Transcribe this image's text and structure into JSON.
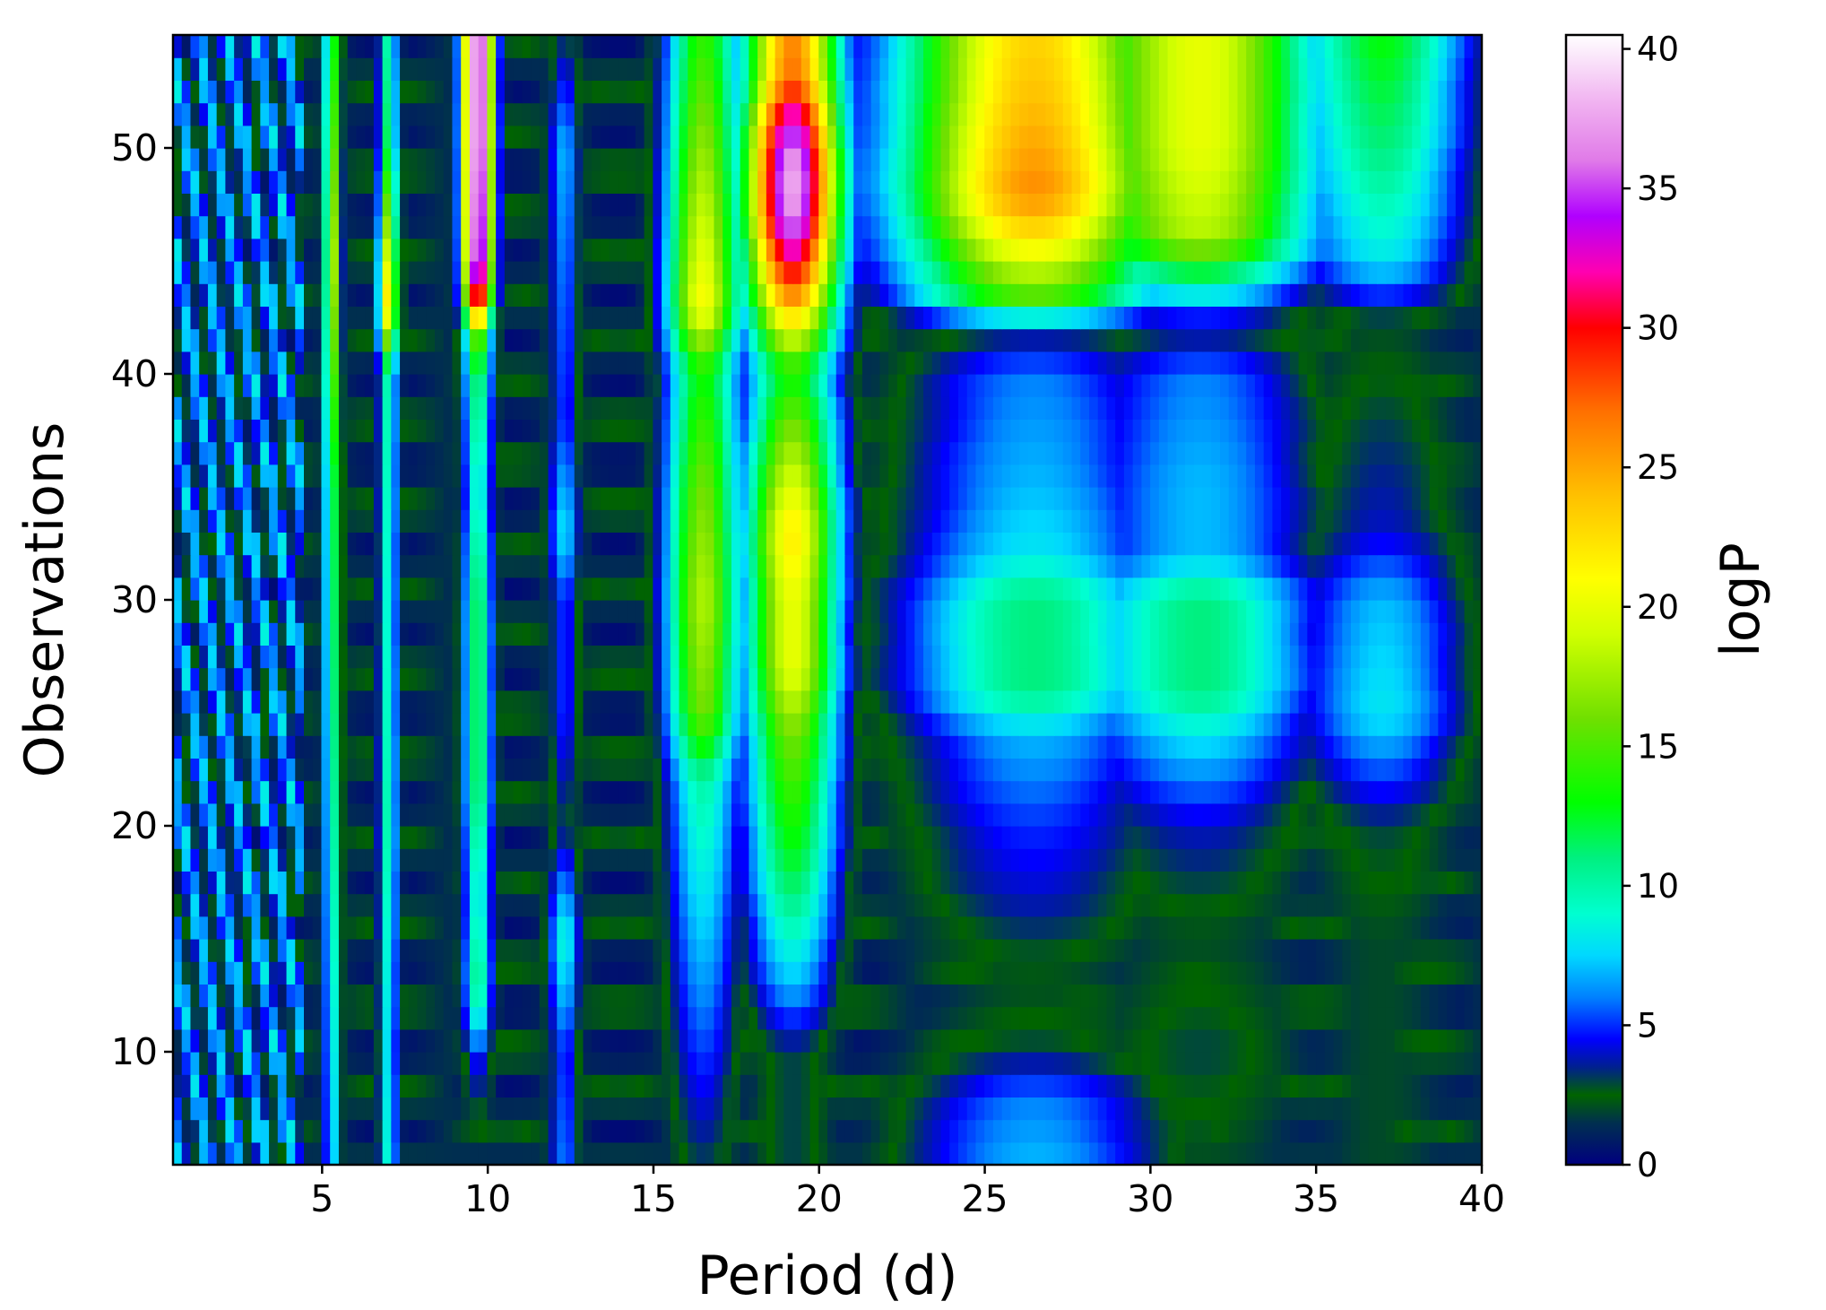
{
  "chart_data": {
    "type": "heatmap",
    "title": "",
    "xlabel": "Period (d)",
    "ylabel": "Observations",
    "colorbar_label": "logP",
    "xlim": [
      0.5,
      40
    ],
    "ylim": [
      5,
      55
    ],
    "clim": [
      0,
      40.5
    ],
    "colormap": "gist_ncar",
    "grid": false,
    "x_ticks": [
      5,
      10,
      15,
      20,
      25,
      30,
      35,
      40
    ],
    "x_tick_labels": [
      "5",
      "10",
      "15",
      "20",
      "25",
      "30",
      "35",
      "40"
    ],
    "y_ticks": [
      10,
      20,
      30,
      40,
      50
    ],
    "y_tick_labels": [
      "10",
      "20",
      "30",
      "40",
      "50"
    ],
    "colorbar_ticks": [
      0,
      5,
      10,
      15,
      20,
      25,
      30,
      35,
      40
    ],
    "colorbar_tick_labels": [
      "0",
      "5",
      "10",
      "15",
      "20",
      "25",
      "30",
      "35",
      "40"
    ],
    "colorbar_stops": [
      {
        "v": 0,
        "color": "#000080"
      },
      {
        "v": 1.5,
        "color": "#002f4f"
      },
      {
        "v": 2.5,
        "color": "#006400"
      },
      {
        "v": 3.5,
        "color": "#00208f"
      },
      {
        "v": 4.5,
        "color": "#0000ff"
      },
      {
        "v": 6,
        "color": "#0080ff"
      },
      {
        "v": 7.5,
        "color": "#00d8ff"
      },
      {
        "v": 9,
        "color": "#00ffd0"
      },
      {
        "v": 11,
        "color": "#00f080"
      },
      {
        "v": 13,
        "color": "#00ff00"
      },
      {
        "v": 16,
        "color": "#70e000"
      },
      {
        "v": 19,
        "color": "#d0ff00"
      },
      {
        "v": 21,
        "color": "#ffff00"
      },
      {
        "v": 24,
        "color": "#ffc000"
      },
      {
        "v": 27,
        "color": "#ff7000"
      },
      {
        "v": 30,
        "color": "#ff0000"
      },
      {
        "v": 32,
        "color": "#ff00b0"
      },
      {
        "v": 34,
        "color": "#b000ff"
      },
      {
        "v": 36,
        "color": "#e07ae8"
      },
      {
        "v": 38,
        "color": "#f0b0f0"
      },
      {
        "v": 40.5,
        "color": "#ffffff"
      }
    ],
    "period_features": [
      {
        "period": 9.7,
        "width": 0.45,
        "values_by_obs": [
          [
            5,
            1
          ],
          [
            10,
            5
          ],
          [
            11,
            8
          ],
          [
            13,
            11
          ],
          [
            17,
            9
          ],
          [
            22,
            12
          ],
          [
            25,
            12
          ],
          [
            30,
            12
          ],
          [
            35,
            9
          ],
          [
            40,
            12
          ],
          [
            42,
            17
          ],
          [
            43,
            30
          ],
          [
            45,
            38
          ],
          [
            50,
            40
          ],
          [
            55,
            40
          ]
        ]
      },
      {
        "period": 19.2,
        "width": 1.4,
        "values_by_obs": [
          [
            5,
            3
          ],
          [
            10,
            3
          ],
          [
            13,
            7
          ],
          [
            18,
            12
          ],
          [
            24,
            16
          ],
          [
            27,
            20
          ],
          [
            30,
            20
          ],
          [
            33,
            22
          ],
          [
            37,
            17
          ],
          [
            40,
            13
          ],
          [
            42,
            20
          ],
          [
            44,
            28
          ],
          [
            47,
            37
          ],
          [
            49,
            38
          ],
          [
            51,
            34
          ],
          [
            53,
            27
          ],
          [
            55,
            26
          ]
        ]
      },
      {
        "period": 16.5,
        "width": 1.1,
        "values_by_obs": [
          [
            5,
            3
          ],
          [
            12,
            6
          ],
          [
            17,
            8
          ],
          [
            22,
            10
          ],
          [
            25,
            16
          ],
          [
            30,
            18
          ],
          [
            35,
            16
          ],
          [
            40,
            13
          ],
          [
            43,
            21
          ],
          [
            55,
            14
          ]
        ]
      },
      {
        "period": 26.5,
        "width": 4.0,
        "values_by_obs": [
          [
            5,
            7
          ],
          [
            8,
            6
          ],
          [
            10,
            3
          ],
          [
            13,
            2
          ],
          [
            17,
            4
          ],
          [
            20,
            5
          ],
          [
            24,
            7
          ],
          [
            26,
            11
          ],
          [
            30,
            11
          ],
          [
            32,
            8
          ],
          [
            35,
            7
          ],
          [
            40,
            6
          ],
          [
            42,
            3
          ],
          [
            43,
            14
          ],
          [
            46,
            22
          ],
          [
            48,
            26
          ],
          [
            52,
            24
          ],
          [
            55,
            23
          ]
        ]
      },
      {
        "period": 31.5,
        "width": 3.5,
        "values_by_obs": [
          [
            5,
            2
          ],
          [
            10,
            3
          ],
          [
            15,
            2
          ],
          [
            20,
            4
          ],
          [
            24,
            8
          ],
          [
            26,
            11
          ],
          [
            30,
            11
          ],
          [
            32,
            7
          ],
          [
            35,
            7
          ],
          [
            40,
            6
          ],
          [
            42,
            3
          ],
          [
            44,
            10
          ],
          [
            46,
            18
          ],
          [
            50,
            20
          ],
          [
            55,
            20
          ]
        ]
      },
      {
        "period": 37.0,
        "width": 2.5,
        "values_by_obs": [
          [
            5,
            2
          ],
          [
            15,
            2
          ],
          [
            20,
            3
          ],
          [
            25,
            8
          ],
          [
            30,
            7
          ],
          [
            33,
            4
          ],
          [
            38,
            3
          ],
          [
            42,
            2
          ],
          [
            45,
            8
          ],
          [
            50,
            11
          ],
          [
            55,
            13
          ]
        ]
      },
      {
        "period": 12.3,
        "width": 0.5,
        "values_by_obs": [
          [
            5,
            6
          ],
          [
            10,
            5
          ],
          [
            15,
            9
          ],
          [
            20,
            3
          ],
          [
            25,
            5
          ],
          [
            30,
            5
          ],
          [
            33,
            8
          ],
          [
            38,
            5
          ],
          [
            45,
            6
          ],
          [
            50,
            7
          ],
          [
            55,
            3
          ]
        ]
      },
      {
        "period": 7.0,
        "width": 0.3,
        "values_by_obs": [
          [
            5,
            9
          ],
          [
            10,
            8
          ],
          [
            20,
            10
          ],
          [
            30,
            9
          ],
          [
            40,
            10
          ],
          [
            43,
            23
          ],
          [
            50,
            12
          ],
          [
            55,
            10
          ]
        ]
      },
      {
        "period": 5.3,
        "width": 0.25,
        "values_by_obs": [
          [
            5,
            8
          ],
          [
            15,
            10
          ],
          [
            25,
            12
          ],
          [
            35,
            13
          ],
          [
            45,
            19
          ],
          [
            55,
            14
          ]
        ]
      }
    ]
  }
}
